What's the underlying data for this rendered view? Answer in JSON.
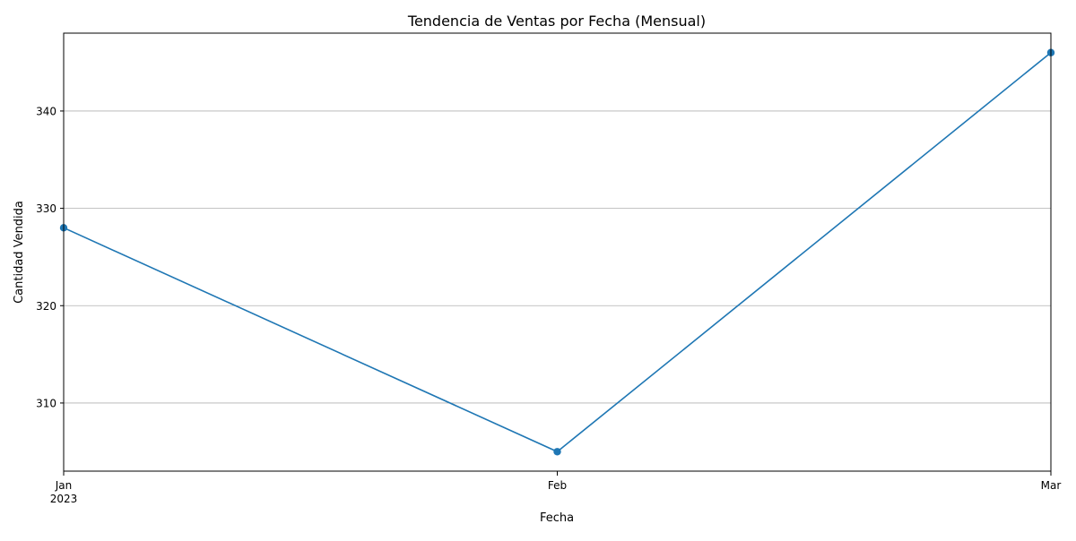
{
  "chart_data": {
    "type": "line",
    "title": "Tendencia de Ventas por Fecha (Mensual)",
    "xlabel": "Fecha",
    "ylabel": "Cantidad Vendida",
    "x": [
      "2023-01",
      "2023-02",
      "2023-03"
    ],
    "x_tick_labels": [
      "Jan",
      "Feb",
      "Mar"
    ],
    "x_tick_year": "2023",
    "y_tick_labels": [
      "310",
      "320",
      "330",
      "340"
    ],
    "ylim": [
      303.0,
      348.0
    ],
    "grid": "horizontal",
    "marker": "circle",
    "series": [
      {
        "values": [
          328,
          305,
          346
        ],
        "color": "#1f77b4"
      }
    ]
  }
}
